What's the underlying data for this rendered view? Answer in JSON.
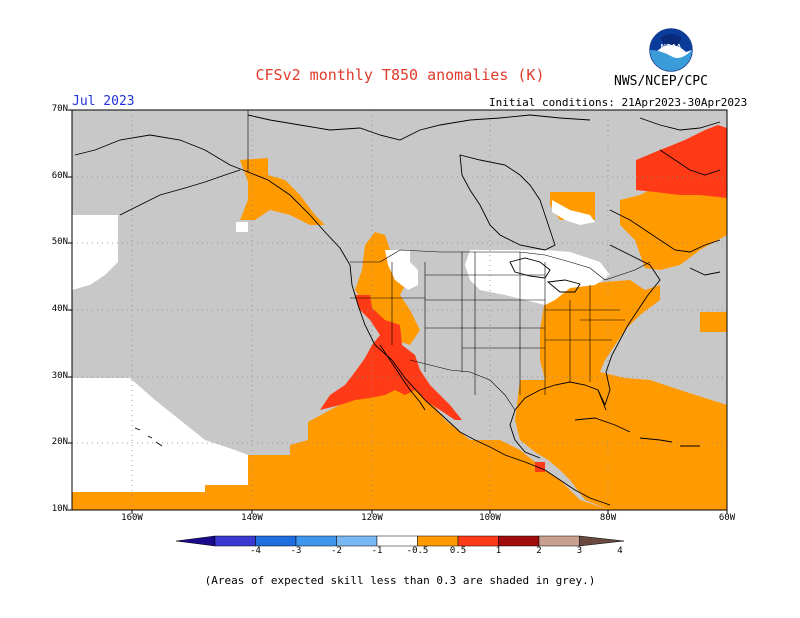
{
  "title": "CFSv2 monthly T850 anomalies (K)",
  "month": "Jul 2023",
  "agency": "NWS/NCEP/CPC",
  "initial_conditions": "Initial conditions: 21Apr2023-30Apr2023",
  "footnote": "(Areas of expected skill less than 0.3 are shaded in grey.)",
  "logo": {
    "text": "NOAA",
    "icon": "noaa-logo-icon"
  },
  "lat_labels": [
    "70N",
    "60N",
    "50N",
    "40N",
    "30N",
    "20N",
    "10N"
  ],
  "lon_labels": [
    "160W",
    "140W",
    "120W",
    "100W",
    "80W",
    "60W"
  ],
  "colorbar": {
    "labels": [
      "-4",
      "-3",
      "-2",
      "-1",
      "-0.5",
      "0.5",
      "1",
      "2",
      "3",
      "4"
    ],
    "colors": [
      "#1a0a8c",
      "#3a3ad0",
      "#1f6ee0",
      "#3f96ee",
      "#7ab8f4",
      "#ffffff",
      "#ff9a00",
      "#ff3a16",
      "#a00c0c",
      "#c8a090",
      "#6a4a40"
    ]
  },
  "colors": {
    "grey": "#c8c8c8",
    "orange": "#ff9a00",
    "red": "#ff3a16",
    "darkred": "#a00c0c",
    "white": "#ffffff"
  }
}
